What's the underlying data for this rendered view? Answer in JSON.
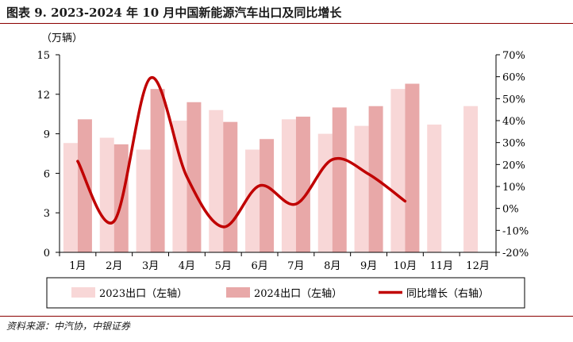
{
  "title": "图表 9. 2023-2024 年 10 月中国新能源汽车出口及同比增长",
  "source": "资料来源：中汽协，中银证券",
  "colors": {
    "s2023": "#f8d7d7",
    "s2024": "#e8a8a8",
    "line": "#c00000",
    "accent": "#8b0000"
  },
  "chart_data": {
    "type": "bar",
    "categories": [
      "1月",
      "2月",
      "3月",
      "4月",
      "5月",
      "6月",
      "7月",
      "8月",
      "9月",
      "10月",
      "11月",
      "12月"
    ],
    "y_left_label": "（万辆）",
    "y_left_range": [
      0,
      15
    ],
    "y_left_ticks": [
      "0",
      "3",
      "6",
      "9",
      "12",
      "15"
    ],
    "y_right_range": [
      -20,
      70
    ],
    "y_right_ticks": [
      "-20%",
      "-10%",
      "0%",
      "10%",
      "20%",
      "30%",
      "40%",
      "50%",
      "60%",
      "70%"
    ],
    "series": [
      {
        "name": "2023出口（左轴）",
        "type": "bar",
        "axis": "left",
        "values": [
          8.3,
          8.7,
          7.8,
          10.0,
          10.8,
          7.8,
          10.1,
          9.0,
          9.6,
          12.4,
          9.7,
          11.1
        ]
      },
      {
        "name": "2024出口（左轴）",
        "type": "bar",
        "axis": "left",
        "values": [
          10.1,
          8.2,
          12.4,
          11.4,
          9.9,
          8.6,
          10.3,
          11.0,
          11.1,
          12.8,
          null,
          null
        ]
      },
      {
        "name": "同比增长（右轴）",
        "type": "line",
        "axis": "right",
        "values": [
          21.5,
          -5.8,
          59.4,
          14.5,
          -8.4,
          10.4,
          2.0,
          22.3,
          15.6,
          3.3,
          null,
          null
        ]
      }
    ],
    "legend_position": "bottom",
    "grid": false
  }
}
